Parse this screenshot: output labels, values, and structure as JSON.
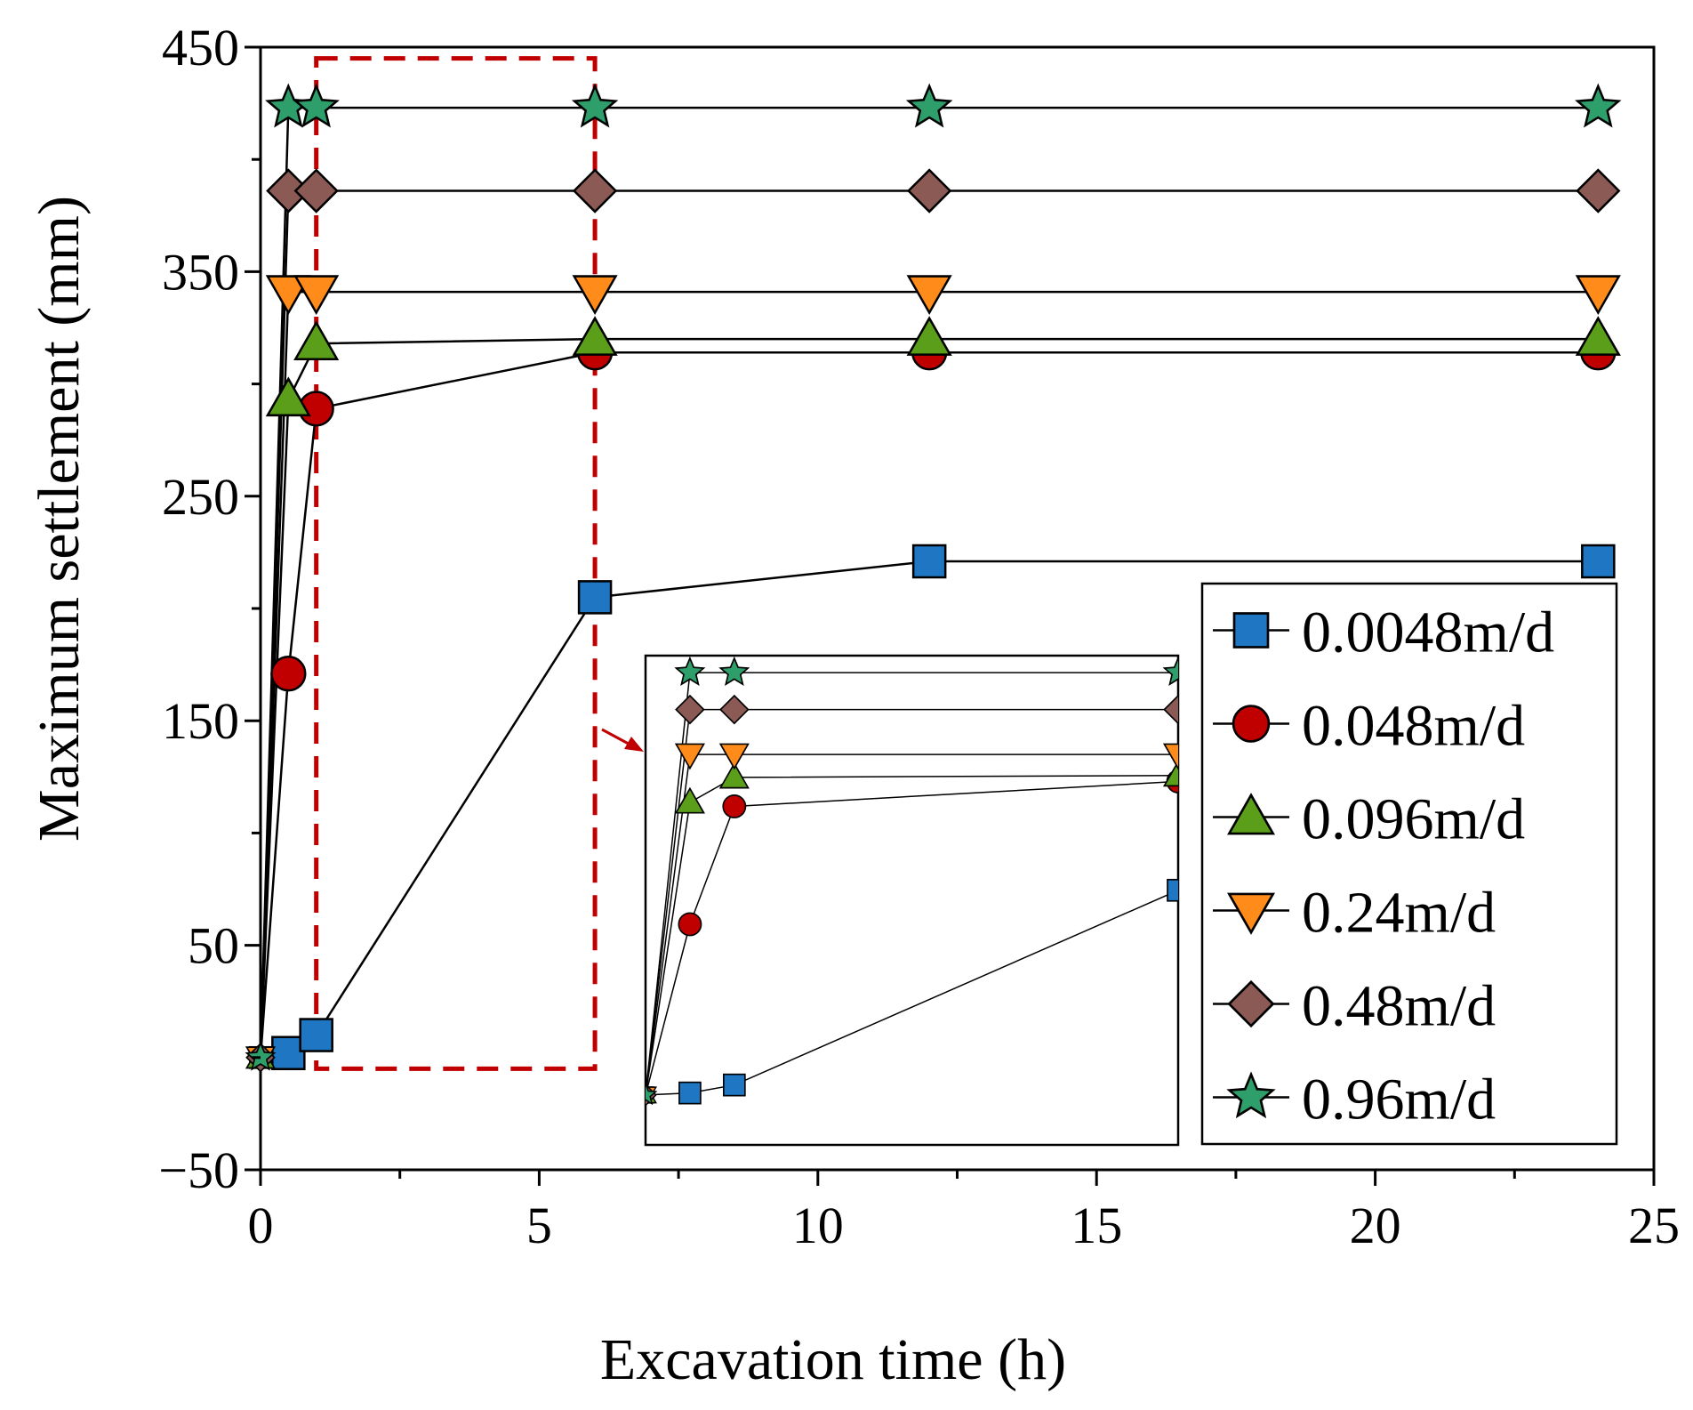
{
  "chart_data": {
    "type": "line",
    "xlabel": "Excavation time (h)",
    "ylabel": "Maximum settlement (mm)",
    "xlim": [
      0,
      25
    ],
    "ylim": [
      -50,
      450
    ],
    "xticks": [
      0,
      5,
      10,
      15,
      20,
      25
    ],
    "yticks": [
      -50,
      50,
      150,
      250,
      350,
      450
    ],
    "xtick_labels": [
      "0",
      "5",
      "10",
      "15",
      "20",
      "25"
    ],
    "ytick_labels": [
      "−50",
      "50",
      "150",
      "250",
      "350",
      "450"
    ],
    "grid": false,
    "legend_position": "bottom-right",
    "series": [
      {
        "name": "0.0048m/d",
        "marker": "square",
        "color": "#1f77c4",
        "x": [
          0,
          0.5,
          1,
          6,
          12,
          24
        ],
        "y": [
          0,
          2,
          10,
          205,
          221,
          221
        ]
      },
      {
        "name": "0.048m/d",
        "marker": "circle",
        "color": "#c00000",
        "x": [
          0,
          0.5,
          1,
          6,
          12,
          24
        ],
        "y": [
          0,
          171,
          289,
          314,
          314,
          314
        ]
      },
      {
        "name": "0.096m/d",
        "marker": "triangle-up",
        "color": "#5a9e1a",
        "x": [
          0,
          0.5,
          1,
          6,
          12,
          24
        ],
        "y": [
          0,
          293,
          318,
          320,
          320,
          320
        ]
      },
      {
        "name": "0.24m/d",
        "marker": "triangle-down",
        "color": "#ff8c1a",
        "x": [
          0,
          0.5,
          1,
          6,
          12,
          24
        ],
        "y": [
          0,
          341,
          341,
          341,
          341,
          341
        ]
      },
      {
        "name": "0.48m/d",
        "marker": "diamond",
        "color": "#8b5a55",
        "x": [
          0,
          0.5,
          1,
          6,
          12,
          24
        ],
        "y": [
          0,
          386,
          386,
          386,
          386,
          386
        ]
      },
      {
        "name": "0.96m/d",
        "marker": "star",
        "color": "#2e9e6b",
        "x": [
          0,
          0.5,
          1,
          6,
          12,
          24
        ],
        "y": [
          0,
          423,
          423,
          423,
          423,
          423
        ]
      }
    ],
    "annotations": {
      "zoom_box_color": "#c00000",
      "zoom_box_x": [
        1,
        6
      ],
      "zoom_box_y": [
        -5,
        445
      ],
      "inset_x_range": [
        0,
        6
      ],
      "inset_y_range": [
        -50,
        440
      ]
    }
  }
}
